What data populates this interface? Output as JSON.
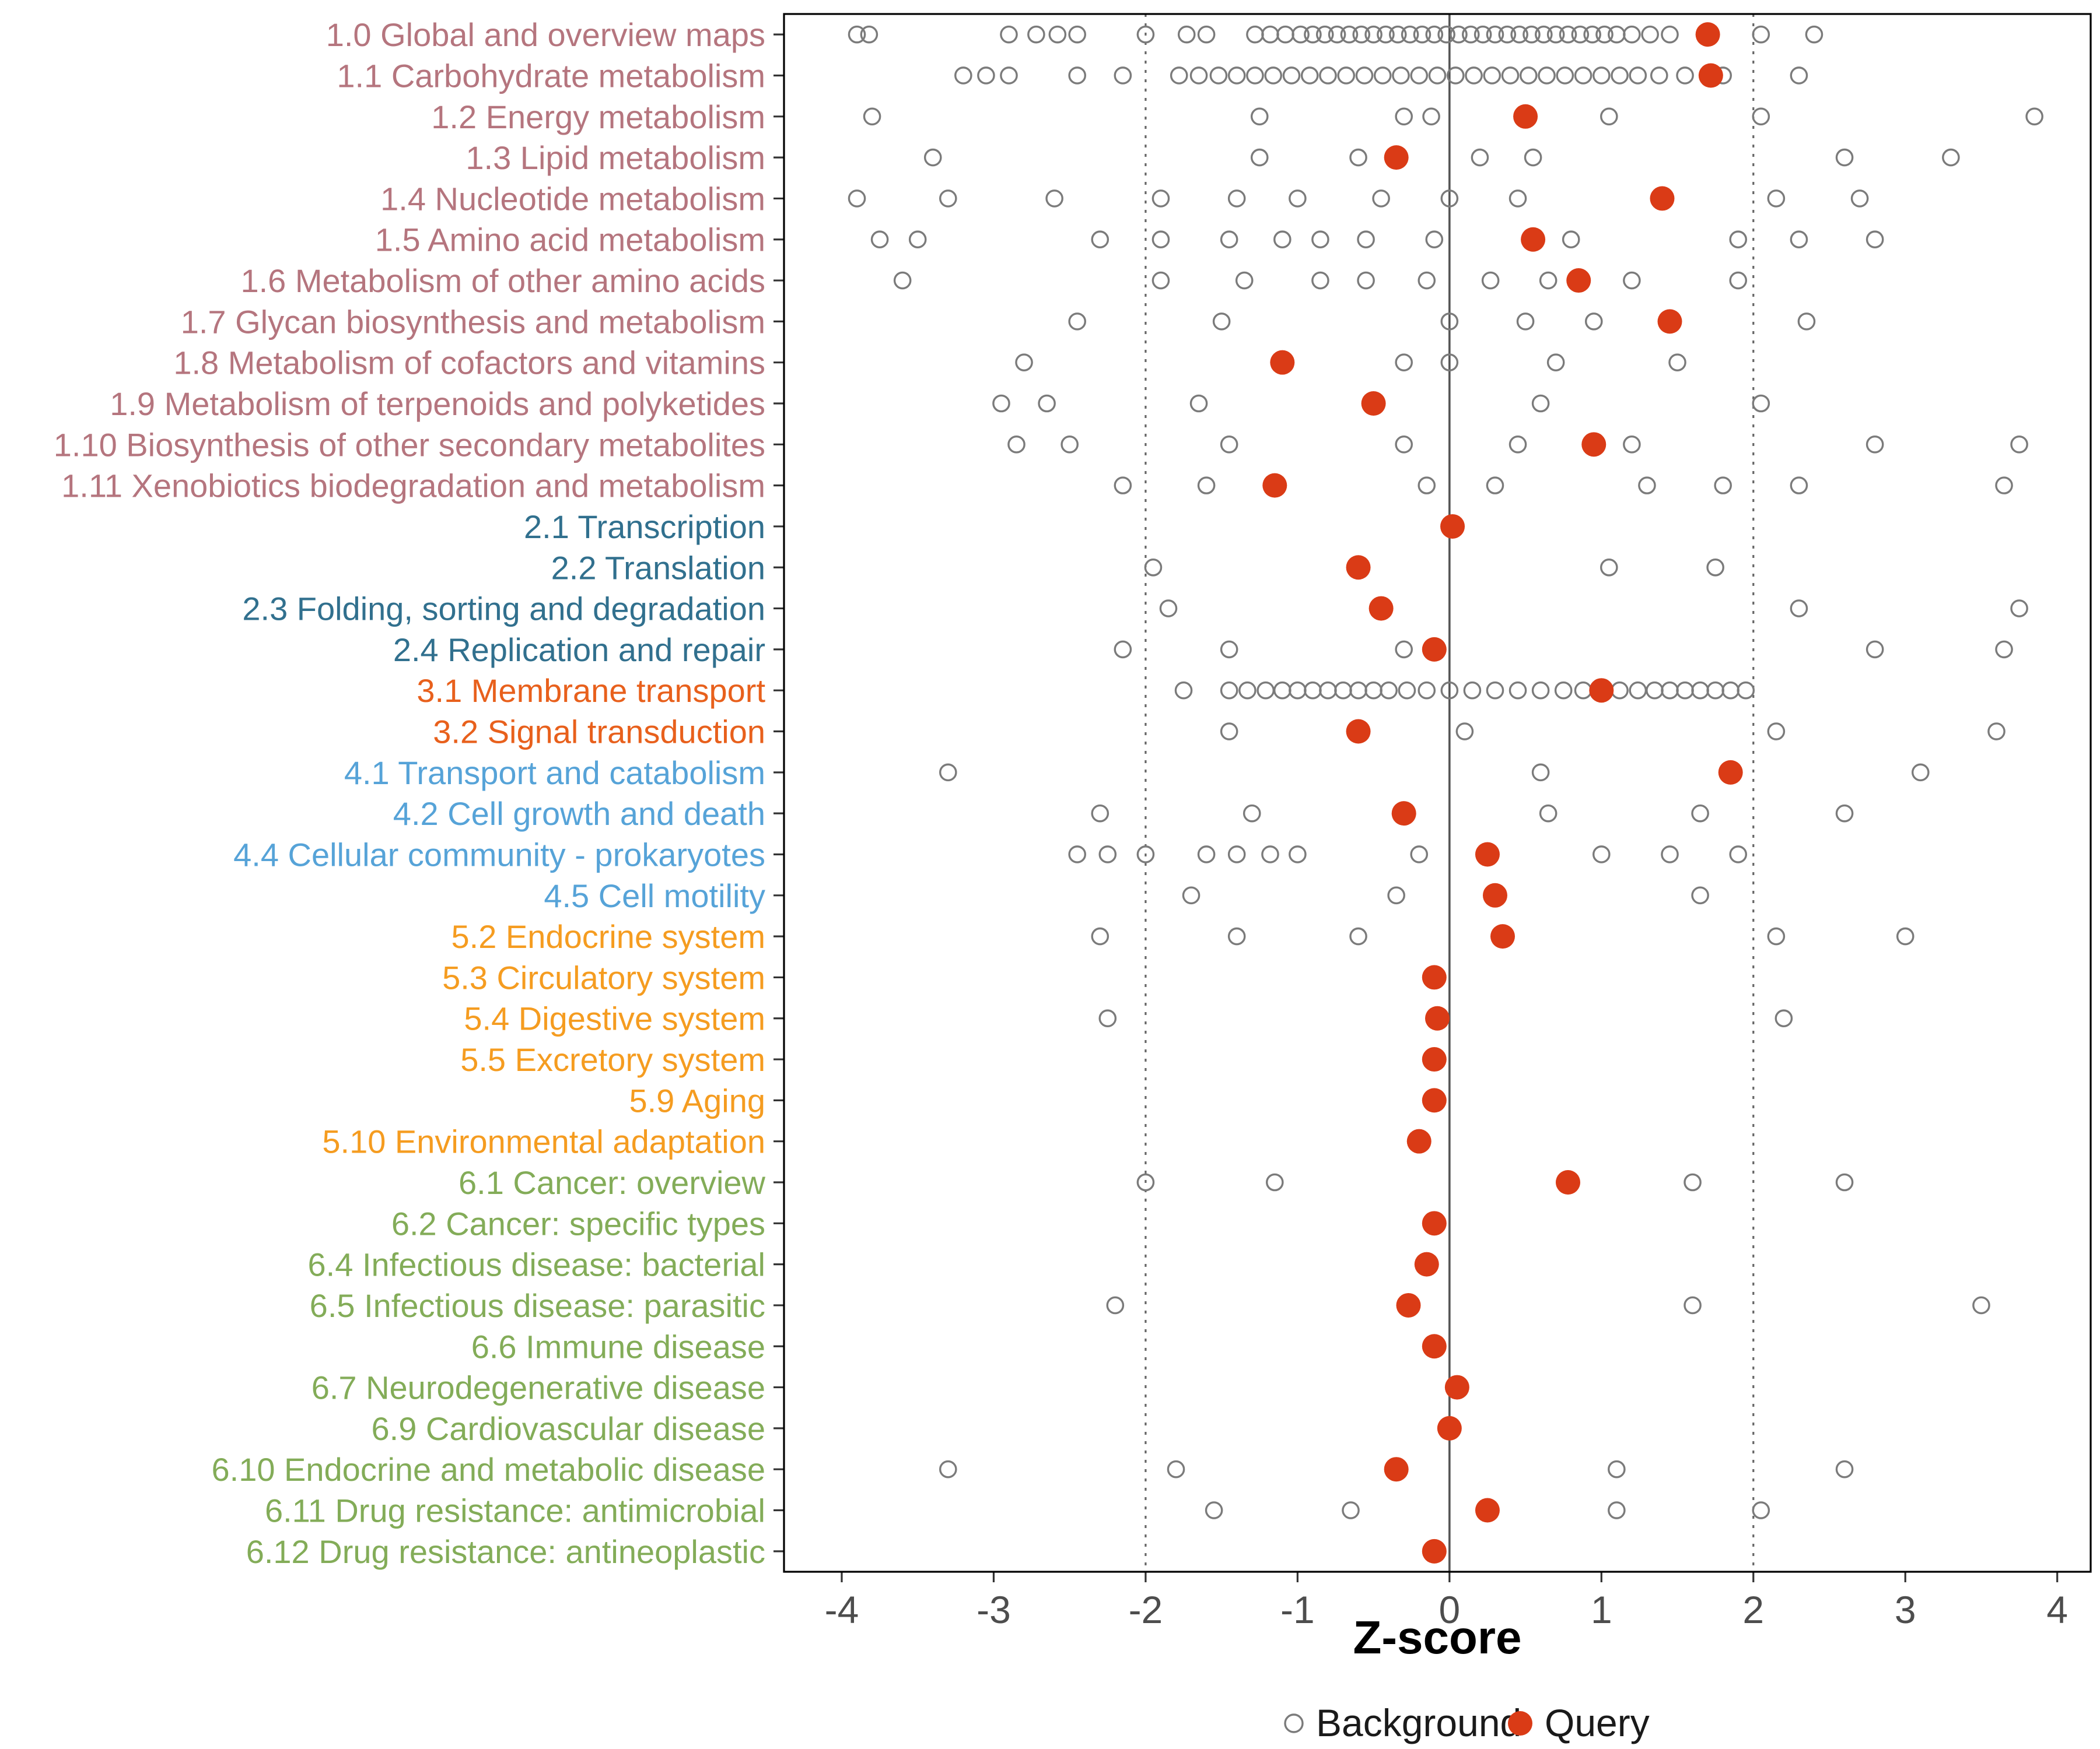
{
  "chart_data": {
    "type": "scatter",
    "xlabel": "Z-score",
    "xlim": [
      -4.38,
      4.22
    ],
    "xticks": [
      -4,
      -3,
      -2,
      -1,
      0,
      1,
      2,
      3,
      4
    ],
    "reference_lines": {
      "solid": [
        0
      ],
      "dotted": [
        -2,
        2
      ]
    },
    "legend": [
      {
        "label": "Background",
        "style": "open"
      },
      {
        "label": "Query",
        "style": "filled"
      }
    ],
    "colors": {
      "query": "#DA3B16",
      "background": "#7B7B7B",
      "ref_solid": "#555555",
      "ref_dotted": "#666666",
      "groups": {
        "1": "#B5757E",
        "2": "#31708E",
        "3": "#E8601C",
        "4": "#56A3D8",
        "5": "#F59C20",
        "6": "#83AC58"
      }
    },
    "rows": [
      {
        "label": "1.0 Global and overview maps",
        "group": "1",
        "query": 1.7,
        "background": [
          -3.9,
          -3.82,
          -2.9,
          -2.72,
          -2.58,
          -2.45,
          -2.0,
          -1.73,
          -1.6,
          -1.28,
          -1.18,
          -1.08,
          -0.98,
          -0.9,
          -0.82,
          -0.74,
          -0.66,
          -0.58,
          -0.5,
          -0.42,
          -0.34,
          -0.26,
          -0.18,
          -0.1,
          -0.02,
          0.06,
          0.14,
          0.22,
          0.3,
          0.38,
          0.46,
          0.54,
          0.62,
          0.7,
          0.78,
          0.86,
          0.94,
          1.02,
          1.1,
          1.2,
          1.32,
          1.45,
          2.05,
          2.4
        ]
      },
      {
        "label": "1.1 Carbohydrate metabolism",
        "group": "1",
        "query": 1.72,
        "background": [
          -3.2,
          -3.05,
          -2.9,
          -2.45,
          -2.15,
          -1.78,
          -1.65,
          -1.52,
          -1.4,
          -1.28,
          -1.16,
          -1.04,
          -0.92,
          -0.8,
          -0.68,
          -0.56,
          -0.44,
          -0.32,
          -0.2,
          -0.08,
          0.04,
          0.16,
          0.28,
          0.4,
          0.52,
          0.64,
          0.76,
          0.88,
          1.0,
          1.12,
          1.24,
          1.38,
          1.55,
          1.8,
          2.3
        ]
      },
      {
        "label": "1.2 Energy metabolism",
        "group": "1",
        "query": 0.5,
        "background": [
          -3.8,
          -1.25,
          -0.3,
          -0.12,
          1.05,
          2.05,
          3.85
        ]
      },
      {
        "label": "1.3 Lipid metabolism",
        "group": "1",
        "query": -0.35,
        "background": [
          -3.4,
          -1.25,
          -0.6,
          0.2,
          0.55,
          2.6,
          3.3
        ]
      },
      {
        "label": "1.4 Nucleotide metabolism",
        "group": "1",
        "query": 1.4,
        "background": [
          -3.9,
          -3.3,
          -2.6,
          -1.9,
          -1.4,
          -1.0,
          -0.45,
          0.0,
          0.45,
          2.15,
          2.7
        ]
      },
      {
        "label": "1.5 Amino acid metabolism",
        "group": "1",
        "query": 0.55,
        "background": [
          -3.75,
          -3.5,
          -2.3,
          -1.9,
          -1.45,
          -1.1,
          -0.85,
          -0.55,
          -0.1,
          0.8,
          1.9,
          2.3,
          2.8
        ]
      },
      {
        "label": "1.6 Metabolism of other amino acids",
        "group": "1",
        "query": 0.85,
        "background": [
          -3.6,
          -1.9,
          -1.35,
          -0.85,
          -0.55,
          -0.15,
          0.27,
          0.65,
          1.2,
          1.9
        ]
      },
      {
        "label": "1.7 Glycan biosynthesis and metabolism",
        "group": "1",
        "query": 1.45,
        "background": [
          -2.45,
          -1.5,
          0.0,
          0.5,
          0.95,
          2.35
        ]
      },
      {
        "label": "1.8 Metabolism of cofactors and vitamins",
        "group": "1",
        "query": -1.1,
        "background": [
          -2.8,
          -0.3,
          0.0,
          0.7,
          1.5
        ]
      },
      {
        "label": "1.9 Metabolism of terpenoids and polyketides",
        "group": "1",
        "query": -0.5,
        "background": [
          -2.95,
          -2.65,
          -1.65,
          0.6,
          2.05
        ]
      },
      {
        "label": "1.10 Biosynthesis of other secondary metabolites",
        "group": "1",
        "query": 0.95,
        "background": [
          -2.85,
          -2.5,
          -1.45,
          -0.3,
          0.45,
          1.2,
          2.8,
          3.75
        ]
      },
      {
        "label": "1.11 Xenobiotics biodegradation and metabolism",
        "group": "1",
        "query": -1.15,
        "background": [
          -2.15,
          -1.6,
          -0.15,
          0.3,
          1.3,
          1.8,
          2.3,
          3.65
        ]
      },
      {
        "label": "2.1 Transcription",
        "group": "2",
        "query": 0.02,
        "background": []
      },
      {
        "label": "2.2 Translation",
        "group": "2",
        "query": -0.6,
        "background": [
          -1.95,
          1.05,
          1.75
        ]
      },
      {
        "label": "2.3 Folding, sorting and degradation",
        "group": "2",
        "query": -0.45,
        "background": [
          -1.85,
          2.3,
          3.75
        ]
      },
      {
        "label": "2.4 Replication and repair",
        "group": "2",
        "query": -0.1,
        "background": [
          -2.15,
          -1.45,
          -0.3,
          2.8,
          3.65
        ]
      },
      {
        "label": "3.1 Membrane transport",
        "group": "3",
        "query": 1.0,
        "background": [
          -1.75,
          -1.45,
          -1.33,
          -1.21,
          -1.1,
          -1.0,
          -0.9,
          -0.8,
          -0.7,
          -0.6,
          -0.5,
          -0.4,
          -0.28,
          -0.15,
          0.0,
          0.15,
          0.3,
          0.45,
          0.6,
          0.75,
          0.88,
          1.12,
          1.24,
          1.35,
          1.45,
          1.55,
          1.65,
          1.75,
          1.85,
          1.95
        ]
      },
      {
        "label": "3.2 Signal transduction",
        "group": "3",
        "query": -0.6,
        "background": [
          -1.45,
          0.1,
          2.15,
          3.6
        ]
      },
      {
        "label": "4.1 Transport and catabolism",
        "group": "4",
        "query": 1.85,
        "background": [
          -3.3,
          0.6,
          3.1
        ]
      },
      {
        "label": "4.2 Cell growth and death",
        "group": "4",
        "query": -0.3,
        "background": [
          -2.3,
          -1.3,
          0.65,
          1.65,
          2.6
        ]
      },
      {
        "label": "4.4 Cellular community - prokaryotes",
        "group": "4",
        "query": 0.25,
        "background": [
          -2.45,
          -2.25,
          -2.0,
          -1.6,
          -1.4,
          -1.18,
          -1.0,
          -0.2,
          1.0,
          1.45,
          1.9
        ]
      },
      {
        "label": "4.5 Cell motility",
        "group": "4",
        "query": 0.3,
        "background": [
          -1.7,
          -0.35,
          1.65
        ]
      },
      {
        "label": "5.2 Endocrine system",
        "group": "5",
        "query": 0.35,
        "background": [
          -2.3,
          -1.4,
          -0.6,
          2.15,
          3.0
        ]
      },
      {
        "label": "5.3 Circulatory system",
        "group": "5",
        "query": -0.1,
        "background": []
      },
      {
        "label": "5.4 Digestive system",
        "group": "5",
        "query": -0.08,
        "background": [
          -2.25,
          2.2
        ]
      },
      {
        "label": "5.5 Excretory system",
        "group": "5",
        "query": -0.1,
        "background": []
      },
      {
        "label": "5.9 Aging",
        "group": "5",
        "query": -0.1,
        "background": []
      },
      {
        "label": "5.10 Environmental adaptation",
        "group": "5",
        "query": -0.2,
        "background": []
      },
      {
        "label": "6.1 Cancer: overview",
        "group": "6",
        "query": 0.78,
        "background": [
          -2.0,
          -1.15,
          1.6,
          2.6
        ]
      },
      {
        "label": "6.2 Cancer: specific types",
        "group": "6",
        "query": -0.1,
        "background": []
      },
      {
        "label": "6.4 Infectious disease: bacterial",
        "group": "6",
        "query": -0.15,
        "background": []
      },
      {
        "label": "6.5 Infectious disease: parasitic",
        "group": "6",
        "query": -0.27,
        "background": [
          -2.2,
          1.6,
          3.5
        ]
      },
      {
        "label": "6.6 Immune disease",
        "group": "6",
        "query": -0.1,
        "background": []
      },
      {
        "label": "6.7 Neurodegenerative disease",
        "group": "6",
        "query": 0.05,
        "background": []
      },
      {
        "label": "6.9 Cardiovascular disease",
        "group": "6",
        "query": 0.0,
        "background": []
      },
      {
        "label": "6.10 Endocrine and metabolic disease",
        "group": "6",
        "query": -0.35,
        "background": [
          -3.3,
          -1.8,
          1.1,
          2.6
        ]
      },
      {
        "label": "6.11 Drug resistance: antimicrobial",
        "group": "6",
        "query": 0.25,
        "background": [
          -1.55,
          -0.65,
          1.1,
          2.05
        ]
      },
      {
        "label": "6.12 Drug resistance: antineoplastic",
        "group": "6",
        "query": -0.1,
        "background": []
      }
    ]
  }
}
